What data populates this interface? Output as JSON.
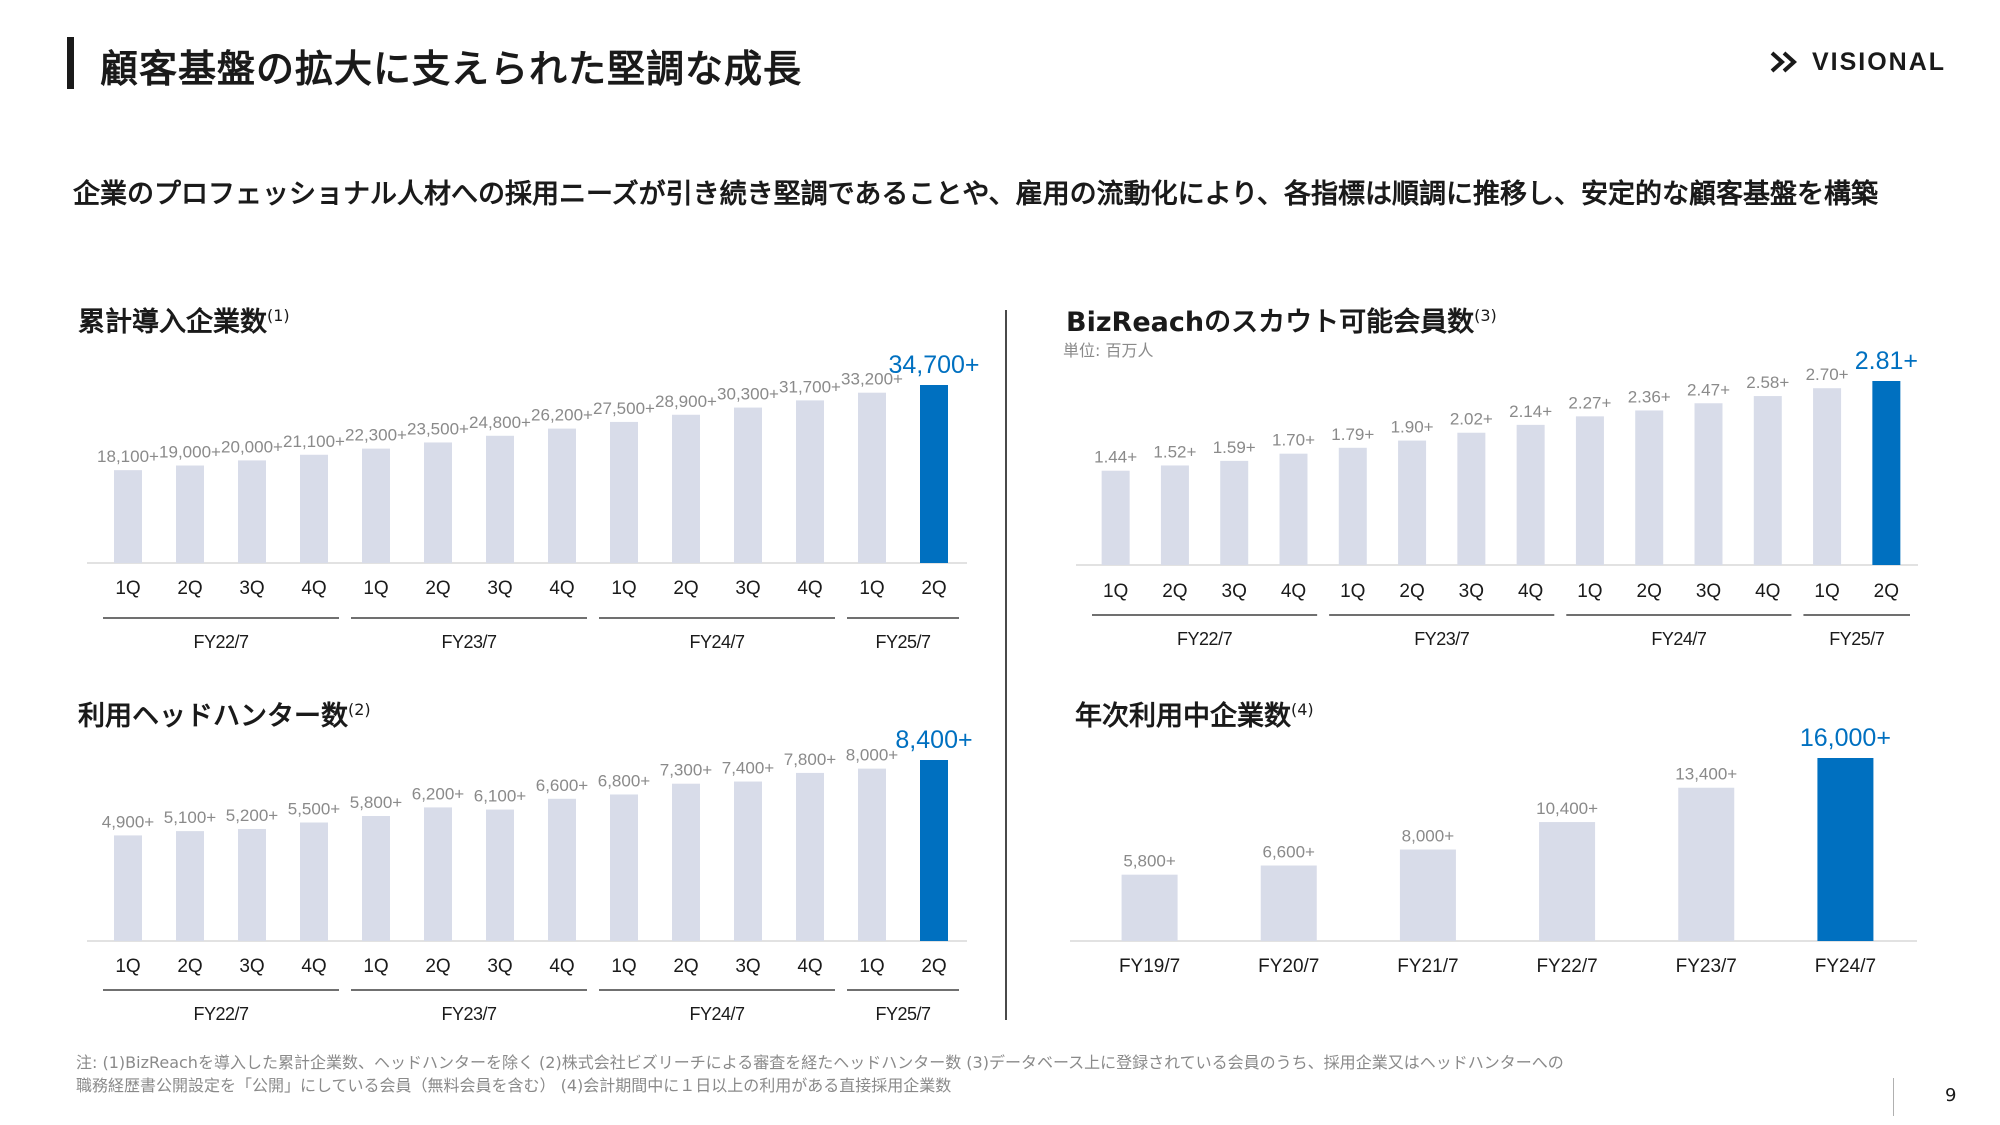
{
  "page": {
    "title": "顧客基盤の拡大に支えられた堅調な成長",
    "logo_text": "VISIONAL",
    "lead": "企業のプロフェッショナル人材への採用ニーズが引き続き堅調であることや、雇用の流動化により、各指標は順調に推移し、安定的な顧客基盤を構築",
    "page_number": "9",
    "footnote_lines": [
      "注: (1)BizReachを導入した累計企業数、ヘッドハンターを除く (2)株式会社ビズリーチによる審査を経たヘッドハンター数 (3)データベース上に登録されている会員のうち、採用企業又はヘッドハンターへの",
      "職務経歴書公開設定を「公開」にしている会員（無料会員を含む） (4)会計期間中に１日以上の利用がある直接採用企業数"
    ]
  },
  "colors": {
    "bar": "#d8dce9",
    "highlight": "#0070c0",
    "label": "#8a8a8a",
    "axis": "#d9d9d9",
    "text": "#1a1a1a"
  },
  "chart_data": [
    {
      "id": "cumulative-companies",
      "type": "bar",
      "title": "累計導入企業数",
      "note_mark": "(1)",
      "categories": [
        "1Q",
        "2Q",
        "3Q",
        "4Q",
        "1Q",
        "2Q",
        "3Q",
        "4Q",
        "1Q",
        "2Q",
        "3Q",
        "4Q",
        "1Q",
        "2Q"
      ],
      "values": [
        18100,
        19000,
        20000,
        21100,
        22300,
        23500,
        24800,
        26200,
        27500,
        28900,
        30300,
        31700,
        33200,
        34700
      ],
      "value_labels": [
        "18,100+",
        "19,000+",
        "20,000+",
        "21,100+",
        "22,300+",
        "23,500+",
        "24,800+",
        "26,200+",
        "27,500+",
        "28,900+",
        "30,300+",
        "31,700+",
        "33,200+",
        "34,700+"
      ],
      "highlight_index": 13,
      "groups": [
        {
          "label": "FY22/7",
          "start": 0,
          "end": 3
        },
        {
          "label": "FY23/7",
          "start": 4,
          "end": 7
        },
        {
          "label": "FY24/7",
          "start": 8,
          "end": 11
        },
        {
          "label": "FY25/7",
          "start": 12,
          "end": 13
        }
      ],
      "ylim": [
        0,
        36000
      ]
    },
    {
      "id": "scout-members",
      "type": "bar",
      "title": "BizReachのスカウト可能会員数",
      "note_mark": "(3)",
      "unit": "単位: 百万人",
      "categories": [
        "1Q",
        "2Q",
        "3Q",
        "4Q",
        "1Q",
        "2Q",
        "3Q",
        "4Q",
        "1Q",
        "2Q",
        "3Q",
        "4Q",
        "1Q",
        "2Q"
      ],
      "values": [
        1.44,
        1.52,
        1.59,
        1.7,
        1.79,
        1.9,
        2.02,
        2.14,
        2.27,
        2.36,
        2.47,
        2.58,
        2.7,
        2.81
      ],
      "value_labels": [
        "1.44+",
        "1.52+",
        "1.59+",
        "1.70+",
        "1.79+",
        "1.90+",
        "2.02+",
        "2.14+",
        "2.27+",
        "2.36+",
        "2.47+",
        "2.58+",
        "2.70+",
        "2.81+"
      ],
      "highlight_index": 13,
      "groups": [
        {
          "label": "FY22/7",
          "start": 0,
          "end": 3
        },
        {
          "label": "FY23/7",
          "start": 4,
          "end": 7
        },
        {
          "label": "FY24/7",
          "start": 8,
          "end": 11
        },
        {
          "label": "FY25/7",
          "start": 12,
          "end": 13
        }
      ],
      "ylim": [
        0,
        3.0
      ]
    },
    {
      "id": "headhunters",
      "type": "bar",
      "title": "利用ヘッドハンター数",
      "note_mark": "(2)",
      "categories": [
        "1Q",
        "2Q",
        "3Q",
        "4Q",
        "1Q",
        "2Q",
        "3Q",
        "4Q",
        "1Q",
        "2Q",
        "3Q",
        "4Q",
        "1Q",
        "2Q"
      ],
      "values": [
        4900,
        5100,
        5200,
        5500,
        5800,
        6200,
        6100,
        6600,
        6800,
        7300,
        7400,
        7800,
        8000,
        8400
      ],
      "value_labels": [
        "4,900+",
        "5,100+",
        "5,200+",
        "5,500+",
        "5,800+",
        "6,200+",
        "6,100+",
        "6,600+",
        "6,800+",
        "7,300+",
        "7,400+",
        "7,800+",
        "8,000+",
        "8,400+"
      ],
      "highlight_index": 13,
      "groups": [
        {
          "label": "FY22/7",
          "start": 0,
          "end": 3
        },
        {
          "label": "FY23/7",
          "start": 4,
          "end": 7
        },
        {
          "label": "FY24/7",
          "start": 8,
          "end": 11
        },
        {
          "label": "FY25/7",
          "start": 12,
          "end": 13
        }
      ],
      "ylim": [
        0,
        9000
      ]
    },
    {
      "id": "annual-active-companies",
      "type": "bar",
      "title": "年次利用中企業数",
      "note_mark": "(4)",
      "categories": [
        "FY19/7",
        "FY20/7",
        "FY21/7",
        "FY22/7",
        "FY23/7",
        "FY24/7"
      ],
      "values": [
        5800,
        6600,
        8000,
        10400,
        13400,
        16000
      ],
      "value_labels": [
        "5,800+",
        "6,600+",
        "8,000+",
        "10,400+",
        "13,400+",
        "16,000+"
      ],
      "highlight_index": 5,
      "ylim": [
        0,
        17000
      ]
    }
  ]
}
